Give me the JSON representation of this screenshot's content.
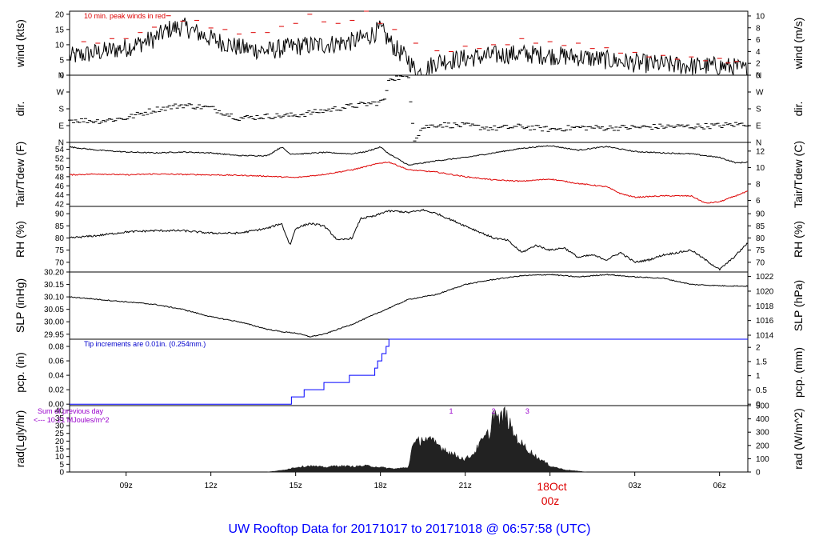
{
  "footer": {
    "title": "UW Rooftop Data for 20171017  to  20171018 @ 06:57:58  (UTC)",
    "title_color": "#0000ff"
  },
  "time_axis": {
    "range_hours": [
      7.0,
      31.0
    ],
    "ticks": [
      {
        "hour": 9,
        "label": "09z"
      },
      {
        "hour": 12,
        "label": "12z"
      },
      {
        "hour": 15,
        "label": "15z"
      },
      {
        "hour": 18,
        "label": "18z"
      },
      {
        "hour": 21,
        "label": "21z"
      },
      {
        "hour": 24,
        "label": ""
      },
      {
        "hour": 27,
        "label": "03z"
      },
      {
        "hour": 30,
        "label": "06z"
      }
    ],
    "day_label": "18Oct",
    "day_sublabel": "00z",
    "day_label_color": "#dd0000"
  },
  "chart_data": [
    {
      "panel": "wind",
      "type": "line",
      "ylabel": "wind (kts)",
      "ylabel_right": "wind (m/s)",
      "ylim": [
        0,
        21
      ],
      "yticks": [
        0,
        5,
        10,
        15,
        20
      ],
      "yticks_right": [
        {
          "v": 0,
          "l": "0"
        },
        {
          "v": 3.89,
          "l": "2"
        },
        {
          "v": 7.78,
          "l": "4"
        },
        {
          "v": 11.66,
          "l": "6"
        },
        {
          "v": 15.55,
          "l": "8"
        },
        {
          "v": 19.44,
          "l": "10"
        }
      ],
      "annotation": "10 min. peak winds in red",
      "annotation_color": "#dd0000",
      "series": [
        {
          "color": "#000000",
          "style": "line",
          "x": [
            7.0,
            8.0,
            9.0,
            10.0,
            10.5,
            11.0,
            12.0,
            13.0,
            14.0,
            15.0,
            16.0,
            17.0,
            17.5,
            18.0,
            18.5,
            19.0,
            19.3,
            19.6,
            20.0,
            21.0,
            22.0,
            23.0,
            24.0,
            25.0,
            26.0,
            27.0,
            28.0,
            29.0,
            30.0,
            30.6,
            31.0
          ],
          "y": [
            6,
            7.5,
            9,
            12,
            15,
            16,
            12,
            9,
            8,
            9.5,
            10,
            11,
            12.5,
            15,
            9,
            5,
            0.5,
            2,
            4.5,
            5.5,
            6.5,
            7,
            6.5,
            6,
            5,
            4,
            3.5,
            3,
            3,
            2.5,
            1.5
          ]
        },
        {
          "color": "#dd0000",
          "style": "dash",
          "x": [
            7.5,
            8.5,
            9.5,
            10.5,
            11.5,
            12.5,
            13.5,
            14.5,
            15.5,
            16.5,
            17.5,
            18.5,
            20.0,
            21.0,
            22.0,
            23.0,
            24.0,
            25.0,
            26.0,
            27.0,
            28.0,
            29.0,
            30.0,
            30.6
          ],
          "y": [
            11,
            12,
            14,
            19.5,
            18,
            15,
            14,
            16,
            20,
            17,
            21,
            15,
            8,
            9.5,
            10,
            12,
            11,
            10.5,
            9,
            7.5,
            6.5,
            6,
            5.5,
            4.5
          ]
        }
      ]
    },
    {
      "panel": "dir",
      "type": "scatter",
      "ylabel": "dir.",
      "ylabel_right": "dir.",
      "ylim": [
        0,
        360
      ],
      "yticks_labeled": [
        {
          "v": 0,
          "l": "N"
        },
        {
          "v": 90,
          "l": "E"
        },
        {
          "v": 180,
          "l": "S"
        },
        {
          "v": 270,
          "l": "W"
        },
        {
          "v": 360,
          "l": "N"
        }
      ],
      "series": [
        {
          "color": "#000000",
          "x": [
            7.0,
            8.0,
            9.0,
            10.0,
            11.0,
            12.0,
            13.0,
            14.0,
            15.0,
            16.0,
            17.0,
            18.0,
            18.2,
            18.3,
            19.0,
            19.2,
            19.5,
            20.0,
            21.0,
            22.0,
            23.0,
            24.0,
            25.0,
            26.0,
            27.0,
            28.0,
            29.0,
            30.0,
            31.0
          ],
          "y": [
            120,
            115,
            130,
            175,
            200,
            185,
            130,
            140,
            145,
            170,
            195,
            215,
            240,
            345,
            350,
            15,
            80,
            95,
            90,
            75,
            85,
            70,
            80,
            78,
            80,
            85,
            85,
            90,
            100
          ]
        }
      ]
    },
    {
      "panel": "temp",
      "type": "line",
      "ylabel": "Tair/Tdew (F)",
      "ylabel_right": "Tair/Tdew (C)",
      "ylim": [
        41.5,
        55.5
      ],
      "yticks": [
        42,
        44,
        46,
        48,
        50,
        52,
        54
      ],
      "yticks_right": [
        {
          "v": 42.8,
          "l": "6"
        },
        {
          "v": 46.4,
          "l": "8"
        },
        {
          "v": 50.0,
          "l": "10"
        },
        {
          "v": 53.6,
          "l": "12"
        }
      ],
      "series": [
        {
          "name": "Tair",
          "color": "#000000",
          "x": [
            7.0,
            8.0,
            9.0,
            10.0,
            11.0,
            12.0,
            13.0,
            14.0,
            14.5,
            14.8,
            15.2,
            16.0,
            17.0,
            17.5,
            18.0,
            18.3,
            19.0,
            20.0,
            21.0,
            22.0,
            23.0,
            24.0,
            25.0,
            26.0,
            27.0,
            28.0,
            29.0,
            30.0,
            30.6,
            31.0
          ],
          "y": [
            54.5,
            53.8,
            53.4,
            53.2,
            53.4,
            53.2,
            52.6,
            52.6,
            54.5,
            53,
            53,
            53.3,
            53,
            53.5,
            54.5,
            53,
            50.5,
            51.5,
            52.2,
            53.2,
            54.2,
            54.8,
            53.8,
            54.6,
            53.5,
            53.2,
            53,
            52.2,
            51,
            51.2
          ]
        },
        {
          "name": "Tdew",
          "color": "#dd0000",
          "x": [
            7.0,
            8.0,
            9.0,
            10.0,
            11.0,
            12.0,
            13.0,
            14.0,
            15.0,
            16.0,
            17.0,
            18.0,
            18.3,
            19.0,
            20.0,
            21.0,
            22.0,
            23.0,
            24.0,
            25.0,
            26.0,
            26.5,
            27.0,
            28.0,
            29.0,
            29.5,
            30.0,
            31.0
          ],
          "y": [
            48.4,
            48.6,
            48.4,
            48.6,
            48.5,
            48.4,
            48.3,
            48.1,
            47.8,
            48.5,
            49.5,
            51,
            51.2,
            49.5,
            49,
            48,
            47.3,
            47,
            47.5,
            46.5,
            45.8,
            44.3,
            43.5,
            43.8,
            43.8,
            42.2,
            42.5,
            44.8
          ]
        }
      ]
    },
    {
      "panel": "rh",
      "type": "line",
      "ylabel": "RH (%)",
      "ylabel_right": "RH (%)",
      "ylim": [
        66,
        93
      ],
      "yticks": [
        70,
        75,
        80,
        85,
        90
      ],
      "series": [
        {
          "color": "#000000",
          "x": [
            7.0,
            8.0,
            9.0,
            10.0,
            11.0,
            12.0,
            13.0,
            14.0,
            14.5,
            14.8,
            15.0,
            15.5,
            16.0,
            16.5,
            17.0,
            17.3,
            17.8,
            18.2,
            18.6,
            19.0,
            19.5,
            20.0,
            21.0,
            22.0,
            22.5,
            23.0,
            23.5,
            24.0,
            24.5,
            25.0,
            25.5,
            26.0,
            26.5,
            27.0,
            27.5,
            28.0,
            28.5,
            29.0,
            29.5,
            30.0,
            30.5,
            31.0
          ],
          "y": [
            80,
            81,
            82.5,
            83,
            83,
            82,
            82,
            84,
            86,
            77,
            84,
            86,
            85,
            79,
            80,
            88,
            89,
            91,
            91,
            90.5,
            91.5,
            90,
            85,
            80,
            79,
            74,
            77,
            75,
            76,
            72,
            73,
            71,
            74,
            70,
            71,
            73,
            74,
            75,
            71,
            67,
            72,
            78
          ]
        }
      ]
    },
    {
      "panel": "slp",
      "type": "line",
      "ylabel": "SLP (inHg)",
      "ylabel_right": "SLP (hPa)",
      "ylim": [
        29.93,
        30.2
      ],
      "yticks": [
        29.95,
        30.0,
        30.05,
        30.1,
        30.15,
        30.2
      ],
      "yticks_right": [
        {
          "v": 29.946,
          "l": "1014"
        },
        {
          "v": 30.005,
          "l": "1016"
        },
        {
          "v": 30.064,
          "l": "1018"
        },
        {
          "v": 30.123,
          "l": "1020"
        },
        {
          "v": 30.182,
          "l": "1022"
        }
      ],
      "series": [
        {
          "color": "#000000",
          "x": [
            7.0,
            8.0,
            9.0,
            10.0,
            11.0,
            12.0,
            13.0,
            14.0,
            14.5,
            15.0,
            15.5,
            16.0,
            17.0,
            18.0,
            19.0,
            20.0,
            21.0,
            22.0,
            23.0,
            24.0,
            25.0,
            26.0,
            27.0,
            28.0,
            29.0,
            30.0,
            31.0
          ],
          "y": [
            30.1,
            30.09,
            30.08,
            30.07,
            30.05,
            30.02,
            30.0,
            29.97,
            29.96,
            29.955,
            29.94,
            29.95,
            29.99,
            30.04,
            30.09,
            30.11,
            30.15,
            30.17,
            30.185,
            30.19,
            30.18,
            30.19,
            30.18,
            30.175,
            30.15,
            30.145,
            30.143
          ]
        }
      ]
    },
    {
      "panel": "pcp",
      "type": "line",
      "ylabel": "pcp. (in)",
      "ylabel_right": "pcp. (mm)",
      "ylim": [
        -0.002,
        0.09
      ],
      "yticks": [
        0.0,
        0.02,
        0.04,
        0.06,
        0.08
      ],
      "yticks_right": [
        {
          "v": 0,
          "l": "0"
        },
        {
          "v": 0.0197,
          "l": "0.5"
        },
        {
          "v": 0.0394,
          "l": "1"
        },
        {
          "v": 0.0591,
          "l": "1.5"
        },
        {
          "v": 0.0787,
          "l": "2"
        }
      ],
      "annotation": "Tip increments are 0.01in. (0.254mm.)",
      "annotation_color": "#0000cc",
      "series": [
        {
          "color": "#0000ff",
          "step": true,
          "x": [
            7.0,
            14.7,
            14.85,
            15.3,
            16.0,
            16.9,
            17.8,
            17.9,
            18.05,
            18.2,
            18.3,
            31.0
          ],
          "y": [
            0,
            0,
            0.01,
            0.02,
            0.03,
            0.04,
            0.05,
            0.06,
            0.07,
            0.08,
            0.09,
            0.09
          ]
        }
      ]
    },
    {
      "panel": "rad",
      "type": "area",
      "ylabel": "rad(Lgly/hr)",
      "ylabel_right": "rad (W/m^2)",
      "ylim": [
        0,
        43
      ],
      "yticks": [
        0,
        5,
        10,
        15,
        20,
        25,
        30,
        35,
        40
      ],
      "yticks_right": [
        {
          "v": 0,
          "l": "0"
        },
        {
          "v": 8.6,
          "l": "100"
        },
        {
          "v": 17.2,
          "l": "200"
        },
        {
          "v": 25.8,
          "l": "300"
        },
        {
          "v": 34.4,
          "l": "400"
        },
        {
          "v": 43,
          "l": "500"
        }
      ],
      "annotation_left": [
        "Sum of previous day",
        "<--- 10.21 MJoules/m^2"
      ],
      "annotation_color": "#9900cc",
      "markers": [
        {
          "x": 20.5,
          "label": "1"
        },
        {
          "x": 22.0,
          "label": "2"
        },
        {
          "x": 23.2,
          "label": "3"
        }
      ],
      "series": [
        {
          "color": "#222222",
          "x": [
            14.0,
            14.5,
            15.0,
            15.5,
            16.0,
            16.5,
            17.0,
            17.5,
            18.0,
            18.5,
            19.0,
            19.1,
            19.5,
            20.0,
            20.5,
            21.0,
            21.3,
            21.6,
            21.9,
            22.0,
            22.2,
            22.4,
            22.7,
            23.0,
            23.5,
            24.0,
            24.5,
            25.0,
            25.3
          ],
          "y": [
            0,
            1,
            3,
            4,
            3,
            4,
            3.5,
            4,
            3,
            2,
            3,
            16,
            22,
            18,
            12,
            8,
            12,
            20,
            26,
            40,
            32,
            38,
            25,
            18,
            10,
            4,
            1.5,
            0.5,
            0
          ]
        }
      ]
    }
  ]
}
